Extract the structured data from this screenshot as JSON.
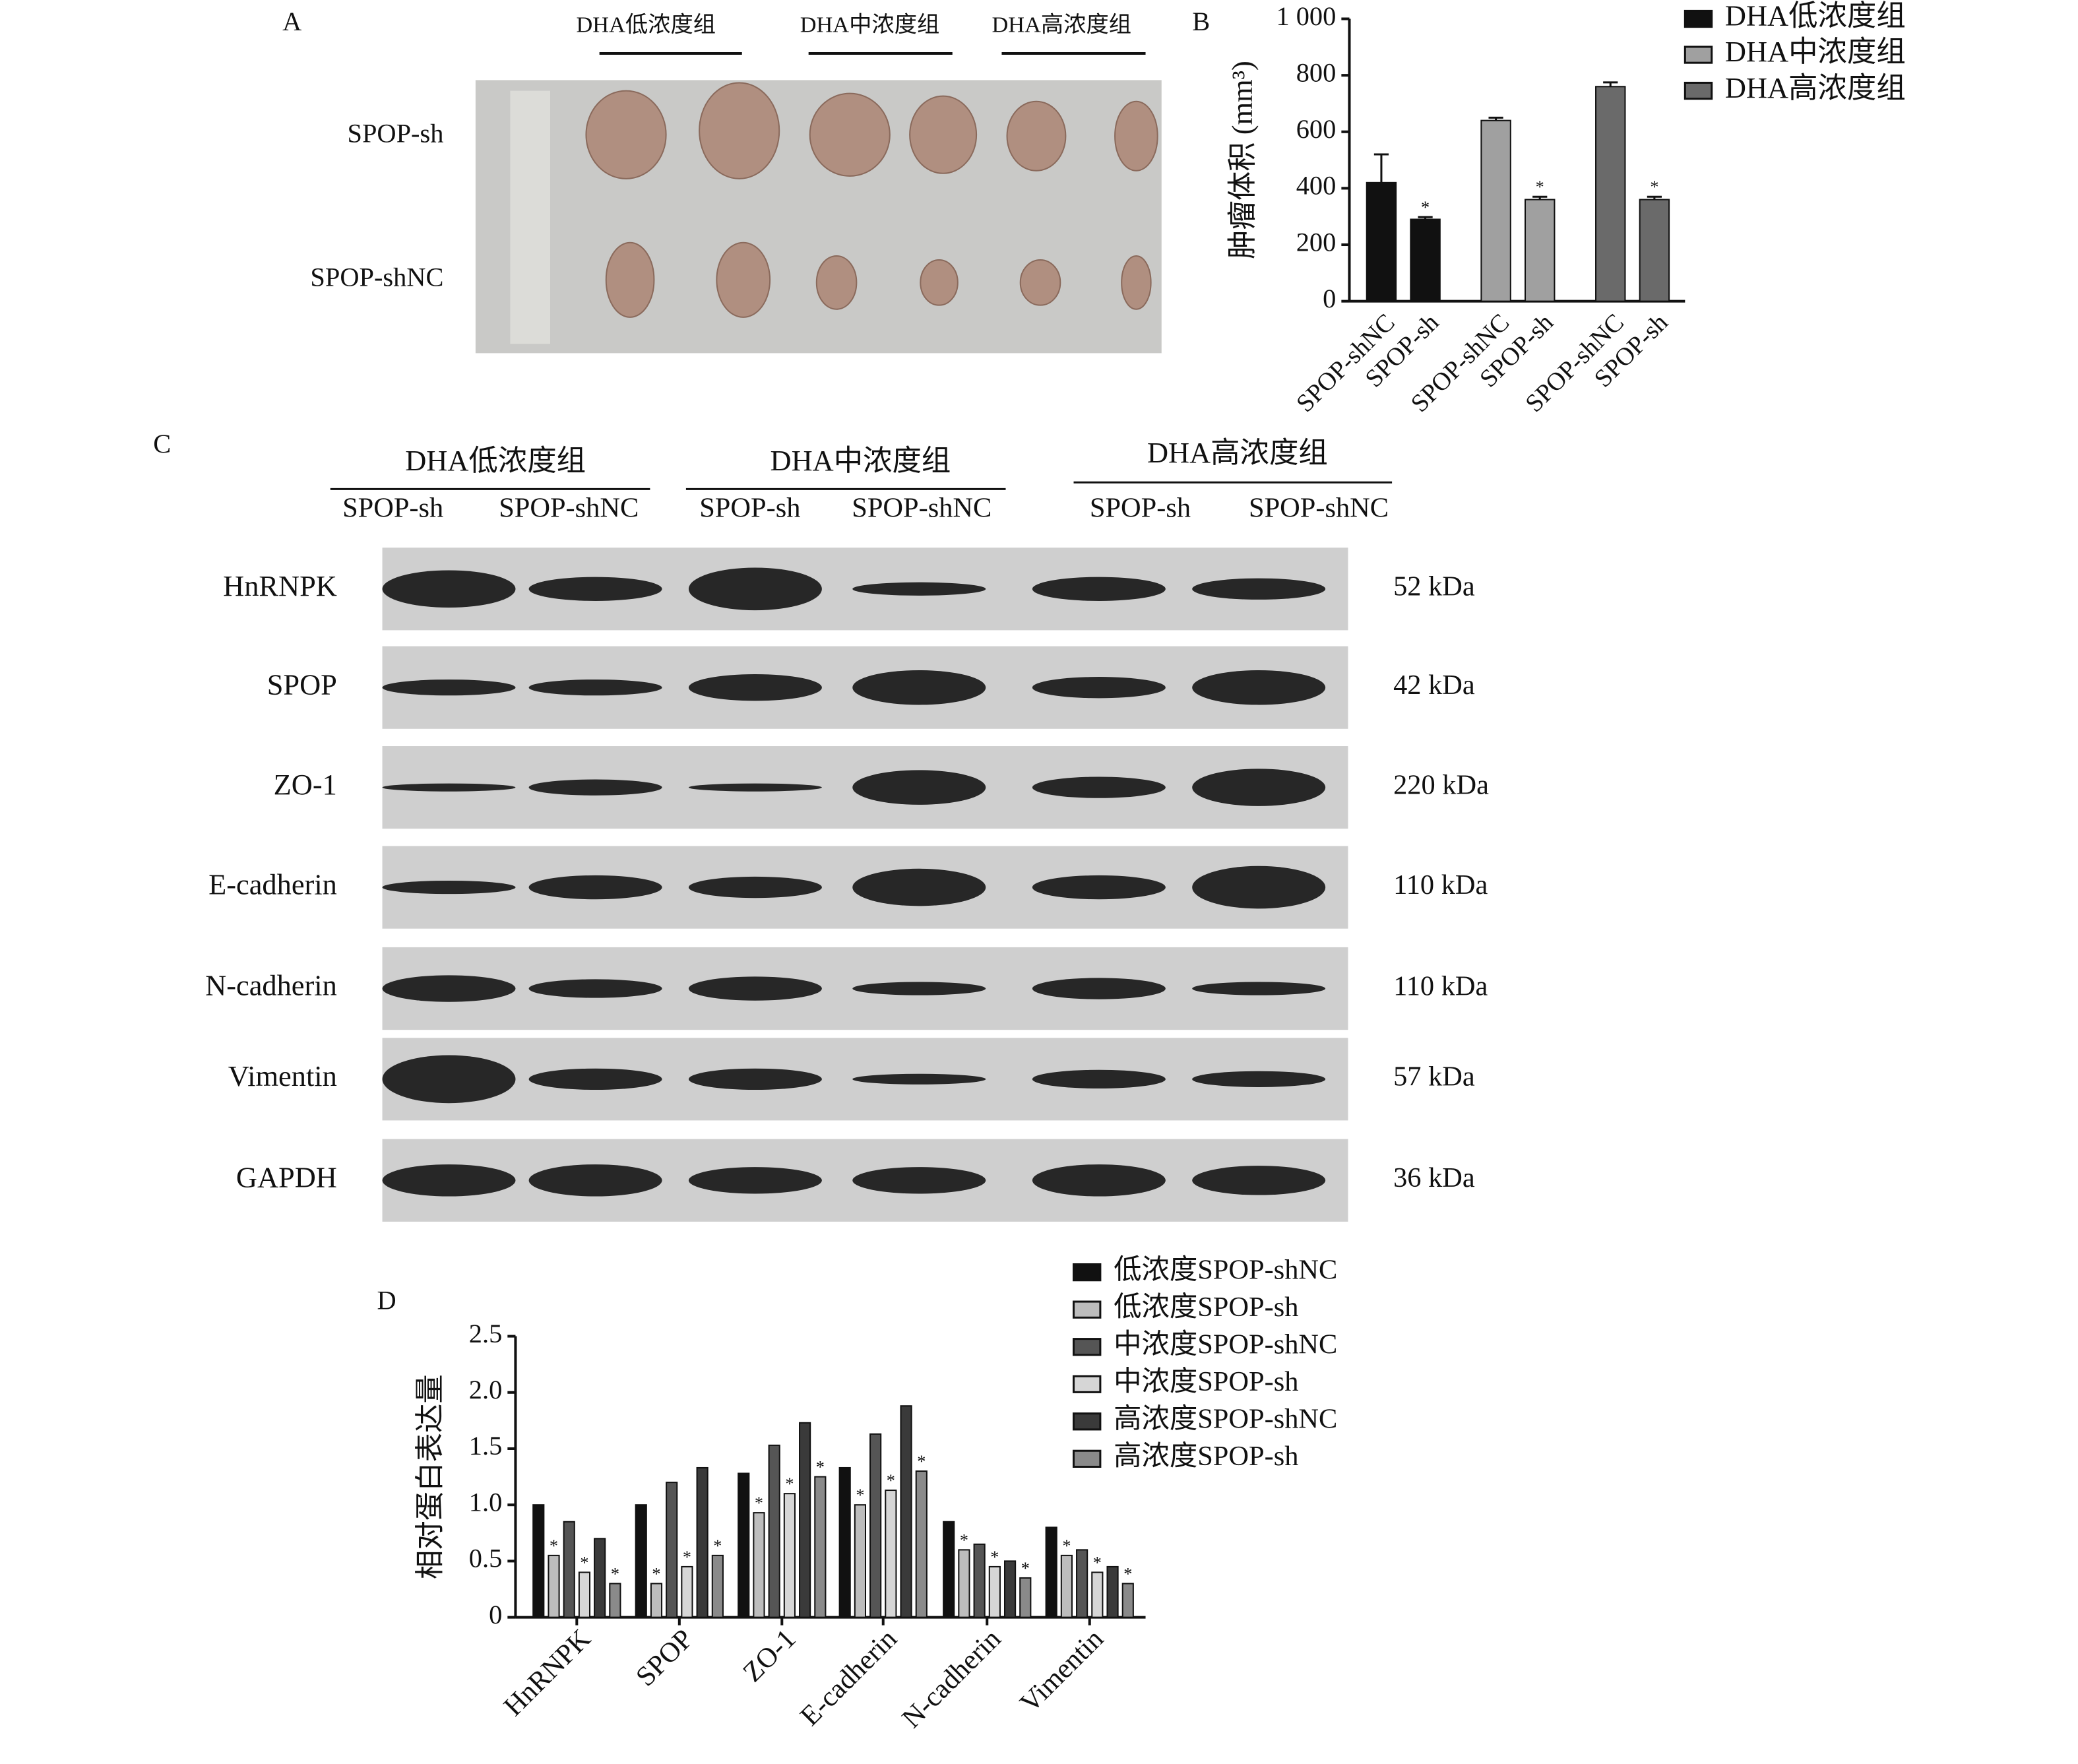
{
  "panel_a": {
    "label": "A",
    "groups": [
      "DHA低浓度组",
      "DHA中浓度组",
      "DHA高浓度组"
    ],
    "rows": [
      "SPOP-sh",
      "SPOP-shNC"
    ]
  },
  "chart_data": [
    {
      "type": "bar",
      "panel_label": "B",
      "ylabel": "肿瘤体积 (mm³)",
      "categories": [
        "SPOP-shNC",
        "SPOP-sh",
        "SPOP-shNC",
        "SPOP-sh",
        "SPOP-shNC",
        "SPOP-sh"
      ],
      "series": [
        {
          "name": "DHA低浓度组",
          "color": "#111111",
          "values": [
            420,
            290,
            null,
            null,
            null,
            null
          ],
          "errors": [
            100,
            8,
            null,
            null,
            null,
            null
          ],
          "significance": [
            null,
            "*",
            null,
            null,
            null,
            null
          ]
        },
        {
          "name": "DHA中浓度组",
          "color": "#a0a0a0",
          "values": [
            null,
            null,
            640,
            360,
            null,
            null
          ],
          "errors": [
            null,
            null,
            10,
            10,
            null,
            null
          ],
          "significance": [
            null,
            null,
            null,
            "*",
            null,
            null
          ]
        },
        {
          "name": "DHA高浓度组",
          "color": "#6a6a6a",
          "values": [
            null,
            null,
            null,
            null,
            760,
            360
          ],
          "errors": [
            null,
            null,
            null,
            null,
            15,
            10
          ],
          "significance": [
            null,
            null,
            null,
            null,
            null,
            "*"
          ]
        }
      ],
      "ylim": [
        0,
        1000
      ],
      "yticks": [
        0,
        200,
        400,
        600,
        800,
        {
          "value": 1000,
          "label": "1 000"
        }
      ]
    },
    {
      "type": "bar",
      "panel_label": "D",
      "ylabel": "相对蛋白表达量",
      "categories": [
        "HnRNPK",
        "SPOP",
        "ZO-1",
        "E-cadherin",
        "N-cadherin",
        "Vimentin"
      ],
      "series": [
        {
          "name": "低浓度SPOP-shNC",
          "color": "#111111",
          "values": [
            1.0,
            1.0,
            1.28,
            1.33,
            0.85,
            0.8
          ],
          "significance": [
            null,
            null,
            null,
            null,
            null,
            null
          ]
        },
        {
          "name": "低浓度SPOP-sh",
          "color": "#bdbdbd",
          "values": [
            0.55,
            0.3,
            0.93,
            1.0,
            0.6,
            0.55
          ],
          "significance": [
            "*",
            "*",
            "*",
            "*",
            "*",
            "*"
          ]
        },
        {
          "name": "中浓度SPOP-shNC",
          "color": "#555555",
          "values": [
            0.85,
            1.2,
            1.53,
            1.63,
            0.65,
            0.6
          ],
          "significance": [
            null,
            null,
            null,
            null,
            null,
            null
          ]
        },
        {
          "name": "中浓度SPOP-sh",
          "color": "#d6d6d6",
          "values": [
            0.4,
            0.45,
            1.1,
            1.13,
            0.45,
            0.4
          ],
          "significance": [
            "*",
            "*",
            "*",
            "*",
            "*",
            "*"
          ]
        },
        {
          "name": "高浓度SPOP-shNC",
          "color": "#3a3a3a",
          "values": [
            0.7,
            1.33,
            1.73,
            1.88,
            0.5,
            0.45
          ],
          "significance": [
            null,
            null,
            null,
            null,
            null,
            null
          ]
        },
        {
          "name": "高浓度SPOP-sh",
          "color": "#8a8a8a",
          "values": [
            0.3,
            0.55,
            1.25,
            1.3,
            0.35,
            0.3
          ],
          "significance": [
            "*",
            "*",
            "*",
            "*",
            "*",
            "*"
          ]
        }
      ],
      "ylim": [
        0,
        2.5
      ],
      "yticks": [
        0,
        0.5,
        {
          "value": 1,
          "label": "1.0"
        },
        1.5,
        {
          "value": 2,
          "label": "2.0"
        },
        2.5
      ]
    }
  ],
  "panel_c": {
    "label": "C",
    "groups": [
      "DHA低浓度组",
      "DHA中浓度组",
      "DHA高浓度组"
    ],
    "lanes": [
      "SPOP-sh",
      "SPOP-shNC",
      "SPOP-sh",
      "SPOP-shNC",
      "SPOP-sh",
      "SPOP-shNC"
    ],
    "rows": [
      {
        "protein": "HnRNPK",
        "size": "52 kDa"
      },
      {
        "protein": "SPOP",
        "size": "42 kDa"
      },
      {
        "protein": "ZO-1",
        "size": "220 kDa"
      },
      {
        "protein": "E-cadherin",
        "size": "110 kDa"
      },
      {
        "protein": "N-cadherin",
        "size": "110 kDa"
      },
      {
        "protein": "Vimentin",
        "size": "57 kDa"
      },
      {
        "protein": "GAPDH",
        "size": "36 kDa"
      }
    ]
  }
}
